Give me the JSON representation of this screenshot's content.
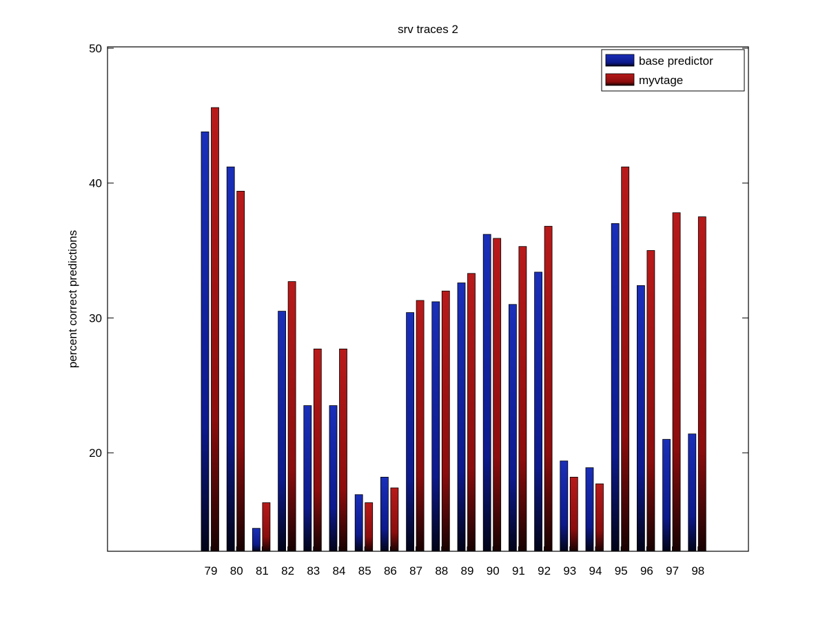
{
  "chart_data": {
    "type": "bar",
    "title": "srv traces 2",
    "xlabel": "",
    "ylabel": "percent correct predictions",
    "categories": [
      "79",
      "80",
      "81",
      "82",
      "83",
      "84",
      "85",
      "86",
      "87",
      "88",
      "89",
      "90",
      "91",
      "92",
      "93",
      "94",
      "95",
      "96",
      "97",
      "98"
    ],
    "series": [
      {
        "name": "base predictor",
        "color": "#0d1a8c",
        "values": [
          43.8,
          41.2,
          14.4,
          30.5,
          23.5,
          23.5,
          16.9,
          18.2,
          30.4,
          31.2,
          32.6,
          36.2,
          31.0,
          33.4,
          19.4,
          18.9,
          37.0,
          32.4,
          21.0,
          21.4
        ]
      },
      {
        "name": "myvtage",
        "color": "#8c0d0d",
        "values": [
          45.6,
          39.4,
          16.3,
          32.7,
          27.7,
          27.7,
          16.3,
          17.4,
          31.3,
          32.0,
          33.3,
          35.9,
          35.3,
          36.8,
          18.2,
          17.7,
          41.2,
          35.0,
          37.8,
          37.5
        ]
      }
    ],
    "ylim": [
      12.7,
      50.1
    ],
    "yticks": [
      20,
      30,
      40,
      50
    ],
    "grid": false,
    "legend_position": "top-right"
  }
}
